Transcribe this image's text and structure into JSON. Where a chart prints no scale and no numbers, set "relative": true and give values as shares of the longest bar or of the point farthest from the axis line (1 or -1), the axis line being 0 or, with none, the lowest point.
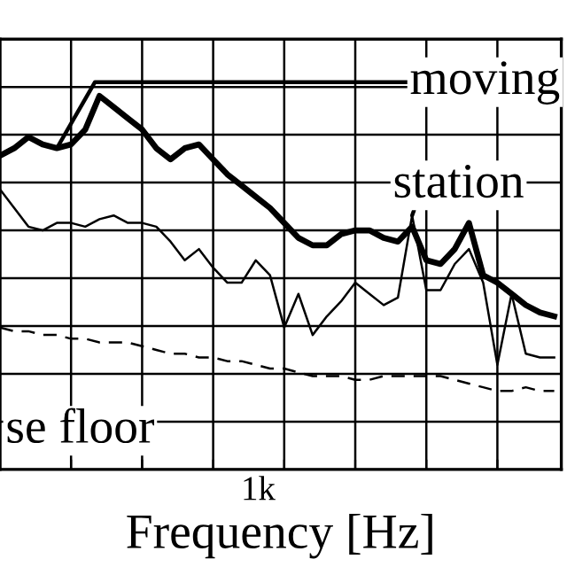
{
  "chart_data": {
    "type": "line",
    "xlabel": "Frequency [Hz]",
    "relative": true,
    "grid": true,
    "legend": false,
    "annotations": [
      "1k"
    ],
    "categories": [
      null,
      null,
      null,
      null,
      null,
      null,
      null,
      null,
      null,
      null,
      null,
      null,
      null,
      null,
      null,
      null,
      null,
      null,
      null,
      null,
      null,
      null,
      null,
      null,
      null,
      null,
      null,
      null,
      null,
      null,
      null,
      null,
      null,
      null,
      null,
      null,
      null,
      null,
      null,
      null
    ],
    "series": [
      {
        "name": "moving",
        "color": "#000000",
        "line_style": "solid",
        "values": [
          0.84,
          0.86,
          0.89,
          0.87,
          0.86,
          0.87,
          0.91,
          1.0,
          0.97,
          0.94,
          0.91,
          0.86,
          0.83,
          0.86,
          0.87,
          0.83,
          0.79,
          0.76,
          0.73,
          0.7,
          0.66,
          0.62,
          0.6,
          0.6,
          0.63,
          0.64,
          0.64,
          0.62,
          0.61,
          0.65,
          0.56,
          0.55,
          0.59,
          0.66,
          0.52,
          0.5,
          0.47,
          0.44,
          0.42,
          0.41
        ]
      },
      {
        "name": "station",
        "color": "#000000",
        "line_style": "solid",
        "values": [
          0.75,
          0.7,
          0.65,
          0.64,
          0.66,
          0.66,
          0.65,
          0.67,
          0.68,
          0.66,
          0.66,
          0.65,
          0.61,
          0.56,
          0.59,
          0.54,
          0.5,
          0.5,
          0.56,
          0.52,
          0.38,
          0.47,
          0.36,
          0.41,
          0.45,
          0.5,
          0.47,
          0.44,
          0.46,
          0.68,
          0.48,
          0.48,
          0.55,
          0.59,
          0.5,
          0.28,
          0.47,
          0.31,
          0.3,
          0.3
        ]
      },
      {
        "name": "se floor",
        "color": "#000000",
        "line_style": "dashed",
        "values": [
          0.38,
          0.37,
          0.37,
          0.36,
          0.36,
          0.35,
          0.35,
          0.34,
          0.34,
          0.34,
          0.33,
          0.32,
          0.31,
          0.31,
          0.3,
          0.3,
          0.29,
          0.29,
          0.28,
          0.27,
          0.27,
          0.26,
          0.25,
          0.25,
          0.25,
          0.24,
          0.24,
          0.25,
          0.25,
          0.25,
          0.25,
          0.25,
          0.24,
          0.23,
          0.22,
          0.21,
          0.21,
          0.22,
          0.21,
          0.21
        ]
      }
    ]
  }
}
